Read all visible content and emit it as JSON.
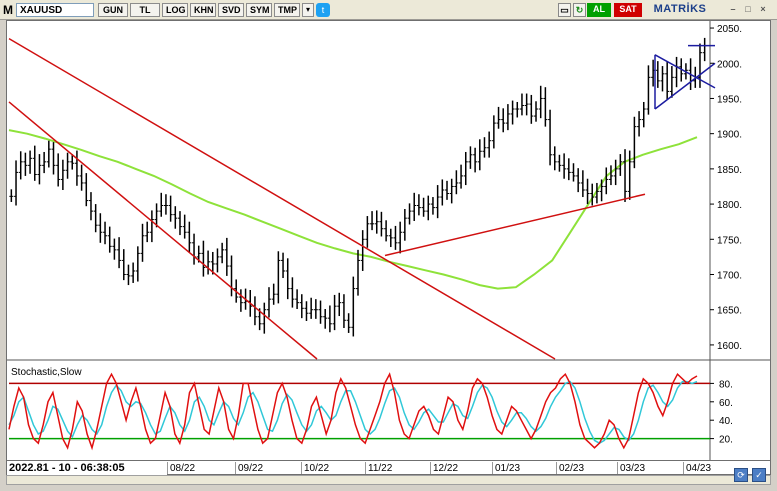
{
  "toolbar": {
    "logo": "M",
    "symbol": "XAUUSD",
    "buttons": [
      "GUN",
      "TL",
      "LOG",
      "KHN",
      "SVD",
      "SYM",
      "TMP"
    ],
    "dropdown_glyph": "▾",
    "twitter_glyph": "t",
    "al_label": "AL",
    "sat_label": "SAT",
    "brand": "MATRİKS",
    "win_glyphs": [
      "▭",
      "↻",
      "◉"
    ],
    "ctrl_glyphs": [
      "–",
      "□",
      "×"
    ]
  },
  "colors": {
    "al_bg": "#00a000",
    "sat_bg": "#d00000",
    "price_bars": "#000000",
    "moving_average": "#8ee23a",
    "channel_lines": "#d01010",
    "triangle": "#1c1ca0",
    "stoch_k": "#e01010",
    "stoch_d": "#30c8d8",
    "stoch_upper": "#b00000",
    "stoch_lower": "#00a000"
  },
  "stochastic": {
    "title": "Stochastic,Slow",
    "levels": [
      "80.",
      "60.",
      "40.",
      "20."
    ]
  },
  "chart_data": {
    "type": "line",
    "instrument": "XAUUSD",
    "price_axis_ticks": [
      "2050.",
      "2000.",
      "1950.",
      "1900.",
      "1850.",
      "1800.",
      "1750.",
      "1700.",
      "1650.",
      "1600."
    ],
    "price_ylim": [
      1580,
      2060
    ],
    "x_ticks": [
      "08/22",
      "09/22",
      "10/22",
      "11/22",
      "12/22",
      "01/23",
      "02/23",
      "03/23",
      "04/23"
    ],
    "series": [
      {
        "type": "ohlc-bars",
        "values": [
          1811,
          1845,
          1860,
          1855,
          1865,
          1842,
          1855,
          1860,
          1878,
          1855,
          1835,
          1848,
          1860,
          1858,
          1840,
          1830,
          1805,
          1790,
          1770,
          1760,
          1755,
          1740,
          1735,
          1720,
          1700,
          1698,
          1705,
          1730,
          1755,
          1760,
          1778,
          1790,
          1798,
          1798,
          1785,
          1780,
          1768,
          1760,
          1745,
          1725,
          1730,
          1710,
          1718,
          1715,
          1725,
          1735,
          1712,
          1680,
          1668,
          1660,
          1662,
          1655,
          1640,
          1630,
          1650,
          1665,
          1672,
          1720,
          1705,
          1680,
          1665,
          1660,
          1652,
          1645,
          1650,
          1650,
          1640,
          1638,
          1630,
          1655,
          1660,
          1635,
          1625,
          1680,
          1720,
          1750,
          1772,
          1772,
          1775,
          1765,
          1755,
          1752,
          1745,
          1760,
          1780,
          1790,
          1798,
          1795,
          1790,
          1800,
          1795,
          1810,
          1820,
          1815,
          1825,
          1830,
          1840,
          1860,
          1870,
          1860,
          1875,
          1880,
          1890,
          1915,
          1920,
          1915,
          1928,
          1935,
          1935,
          1940,
          1942,
          1925,
          1935,
          1950,
          1920,
          1870,
          1860,
          1855,
          1850,
          1845,
          1840,
          1830,
          1820,
          1815,
          1810,
          1818,
          1825,
          1835,
          1840,
          1850,
          1860,
          1818,
          1860,
          1910,
          1920,
          1935,
          1980,
          1990,
          1975,
          1985,
          1960,
          1980,
          1995,
          1985,
          1990,
          1975,
          1980,
          2015,
          2025
        ]
      },
      {
        "name": "",
        "type": "moving-average",
        "values": [
          1905,
          1900,
          1893,
          1885,
          1877,
          1868,
          1860,
          1850,
          1840,
          1828,
          1815,
          1803,
          1794,
          1785,
          1775,
          1765,
          1755,
          1745,
          1737,
          1730,
          1725,
          1718,
          1712,
          1706,
          1700,
          1693,
          1685,
          1680,
          1682,
          1700,
          1720,
          1760,
          1800,
          1840,
          1860,
          1870,
          1878,
          1885,
          1895
        ]
      }
    ],
    "stochastic_values": {
      "k": [
        30,
        55,
        75,
        65,
        35,
        20,
        15,
        35,
        60,
        70,
        45,
        20,
        10,
        30,
        60,
        50,
        25,
        10,
        30,
        55,
        80,
        90,
        80,
        60,
        40,
        60,
        75,
        55,
        30,
        15,
        20,
        45,
        70,
        55,
        25,
        15,
        35,
        70,
        80,
        55,
        30,
        25,
        50,
        75,
        60,
        30,
        20,
        45,
        80,
        80,
        55,
        30,
        15,
        20,
        45,
        70,
        80,
        65,
        40,
        20,
        15,
        30,
        55,
        65,
        45,
        25,
        40,
        70,
        85,
        75,
        55,
        35,
        20,
        15,
        30,
        45,
        60,
        80,
        90,
        70,
        40,
        25,
        20,
        35,
        50,
        55,
        45,
        30,
        25,
        45,
        65,
        60,
        40,
        30,
        50,
        75,
        85,
        80,
        65,
        45,
        30,
        25,
        40,
        55,
        50,
        40,
        30,
        20,
        30,
        45,
        60,
        70,
        75,
        85,
        90,
        80,
        60,
        35,
        20,
        15,
        10,
        15,
        25,
        40,
        35,
        20,
        10,
        20,
        45,
        70,
        85,
        80,
        70,
        55,
        45,
        60,
        80,
        90,
        85,
        80,
        85,
        88
      ],
      "d": [
        35,
        45,
        60,
        65,
        50,
        35,
        25,
        28,
        40,
        55,
        52,
        40,
        28,
        22,
        35,
        45,
        40,
        30,
        25,
        35,
        55,
        70,
        78,
        72,
        60,
        55,
        60,
        58,
        48,
        35,
        25,
        28,
        42,
        55,
        48,
        35,
        28,
        40,
        60,
        65,
        55,
        40,
        35,
        48,
        60,
        55,
        42,
        35,
        48,
        65,
        70,
        60,
        45,
        30,
        28,
        40,
        58,
        68,
        62,
        48,
        35,
        28,
        35,
        50,
        55,
        48,
        40,
        45,
        60,
        72,
        72,
        60,
        45,
        30,
        25,
        30,
        42,
        58,
        72,
        75,
        65,
        48,
        35,
        30,
        38,
        48,
        52,
        45,
        38,
        38,
        48,
        58,
        55,
        45,
        42,
        55,
        70,
        78,
        75,
        65,
        50,
        38,
        33,
        40,
        48,
        48,
        42,
        33,
        28,
        33,
        42,
        55,
        65,
        72,
        80,
        82,
        75,
        60,
        42,
        28,
        18,
        15,
        18,
        25,
        32,
        30,
        22,
        18,
        25,
        40,
        60,
        75,
        78,
        70,
        60,
        55,
        62,
        75,
        82,
        82,
        80,
        82
      ]
    }
  },
  "status": {
    "timestamp": "2022.81 - 10 - 06:38:05"
  }
}
